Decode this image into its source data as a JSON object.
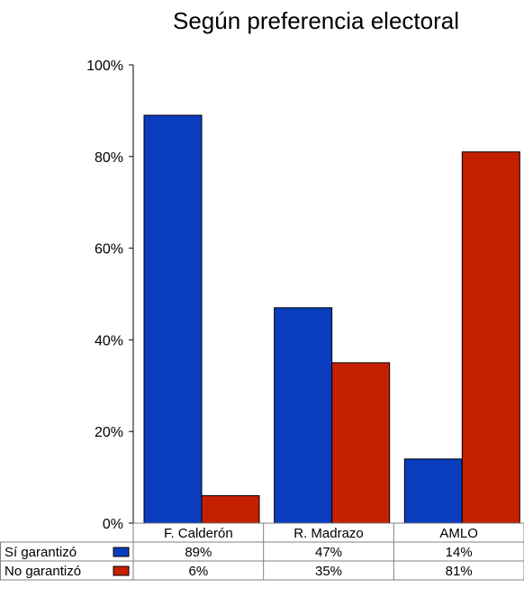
{
  "chart_data": {
    "type": "bar",
    "title": "Según preferencia electoral",
    "categories": [
      "F. Calderón",
      "R. Madrazo",
      "AMLO"
    ],
    "series": [
      {
        "name": "Sí garantizó",
        "values": [
          89,
          47,
          14
        ],
        "labels": [
          "89%",
          "47%",
          "14%"
        ],
        "color": "#0a3cbe"
      },
      {
        "name": "No garantizó",
        "values": [
          6,
          35,
          81
        ],
        "labels": [
          "6%",
          "35%",
          "81%"
        ],
        "color": "#c42000"
      }
    ],
    "ylim": [
      0,
      100
    ],
    "yticks": [
      "0%",
      "20%",
      "40%",
      "60%",
      "80%",
      "100%"
    ],
    "grid": false,
    "legend": "data-table"
  }
}
